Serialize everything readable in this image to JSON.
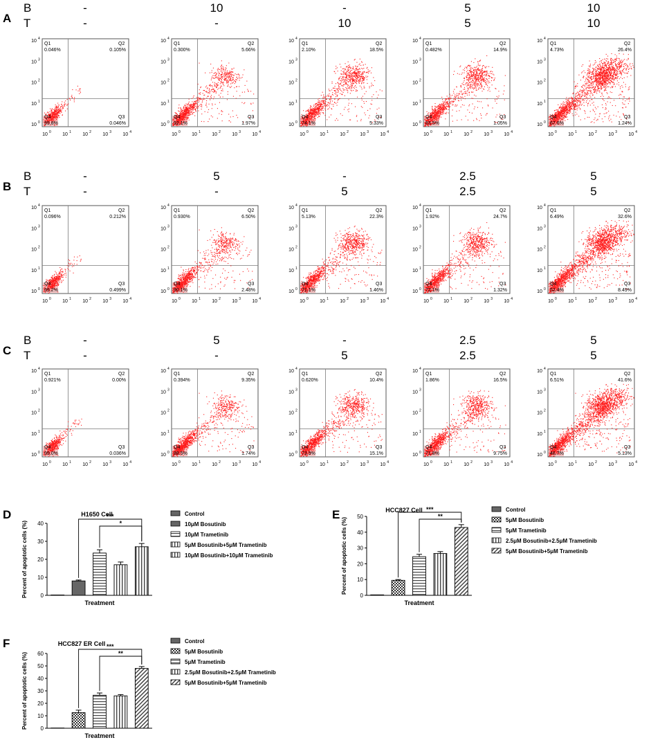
{
  "flow_rows": [
    {
      "letter": "A",
      "B_label": "B",
      "T_label": "T",
      "B": [
        "-",
        "10",
        "-",
        "5",
        "10"
      ],
      "T": [
        "-",
        "-",
        "10",
        "5",
        "10"
      ],
      "plots": [
        {
          "q1": "0.046%",
          "q2": "0.105%",
          "q3": "0.046%",
          "q4": "99.8%",
          "shape": "ctrl"
        },
        {
          "q1": "0.300%",
          "q2": "5.66%",
          "q3": "1.97%",
          "q4": "92.1%",
          "shape": "mild"
        },
        {
          "q1": "2.10%",
          "q2": "18.5%",
          "q3": "5.33%",
          "q4": "74.1%",
          "shape": "mid"
        },
        {
          "q1": "0.482%",
          "q2": "14.9%",
          "q3": "1.05%",
          "q4": "83.5%",
          "shape": "mid"
        },
        {
          "q1": "4.73%",
          "q2": "26.4%",
          "q3": "1.24%",
          "q4": "67.6%",
          "shape": "strong"
        }
      ]
    },
    {
      "letter": "B",
      "B_label": "B",
      "T_label": "T",
      "B": [
        "-",
        "5",
        "-",
        "2.5",
        "5"
      ],
      "T": [
        "-",
        "-",
        "5",
        "2.5",
        "5"
      ],
      "plots": [
        {
          "q1": "0.096%",
          "q2": "0.212%",
          "q3": "0.499%",
          "q4": "99.2%",
          "shape": "ctrl"
        },
        {
          "q1": "0.930%",
          "q2": "6.50%",
          "q3": "2.48%",
          "q4": "90.1%",
          "shape": "mild"
        },
        {
          "q1": "5.13%",
          "q2": "22.3%",
          "q3": "1.46%",
          "q4": "71.1%",
          "shape": "mid"
        },
        {
          "q1": "1.92%",
          "q2": "24.7%",
          "q3": "1.32%",
          "q4": "72.1%",
          "shape": "mid"
        },
        {
          "q1": "6.49%",
          "q2": "32.6%",
          "q3": "8.49%",
          "q4": "52.4%",
          "shape": "strong"
        }
      ]
    },
    {
      "letter": "C",
      "B_label": "B",
      "T_label": "T",
      "B": [
        "-",
        "5",
        "-",
        "2.5",
        "5"
      ],
      "T": [
        "-",
        "-",
        "5",
        "2.5",
        "5"
      ],
      "plots": [
        {
          "q1": "0.921%",
          "q2": "0.00%",
          "q3": "0.036%",
          "q4": "99.0%",
          "shape": "ctrl"
        },
        {
          "q1": "0.394%",
          "q2": "9.35%",
          "q3": "1.74%",
          "q4": "88.5%",
          "shape": "mild"
        },
        {
          "q1": "0.620%",
          "q2": "10.4%",
          "q3": "15.1%",
          "q4": "73.9%",
          "shape": "mid"
        },
        {
          "q1": "1.86%",
          "q2": "16.5%",
          "q3": "9.75%",
          "q4": "71.8%",
          "shape": "mid"
        },
        {
          "q1": "6.51%",
          "q2": "41.6%",
          "q3": "5.13%",
          "q4": "46.7%",
          "shape": "strong"
        }
      ]
    }
  ],
  "flow_axis_ticks": [
    "10",
    "10",
    "10",
    "10",
    "10"
  ],
  "flow_axis_exps": [
    "0",
    "1",
    "2",
    "3",
    "4"
  ],
  "quadrant_names": {
    "q1": "Q1",
    "q2": "Q2",
    "q3": "Q3",
    "q4": "Q4"
  },
  "chart_data": [
    {
      "panel": "D",
      "type": "bar",
      "title": "H1650 Cell",
      "xlabel": "Treatment",
      "ylabel": "Percent of apoptotic cells (%)",
      "ylim": [
        0,
        40
      ],
      "yticks": [
        "0",
        "10",
        "20",
        "30",
        "40"
      ],
      "categories": [
        "Control",
        "10μM Bosutinib",
        "10μM Trametinib",
        "5μM Bosutinib+5μM Trametinib",
        "10μM Bosutinib+10μM Trametinib"
      ],
      "values": [
        0.2,
        8,
        23.5,
        17,
        27
      ],
      "errors": [
        0,
        0.5,
        1.8,
        1.5,
        1.8
      ],
      "patterns": [
        "solid",
        "solid",
        "stripe-h",
        "stripe-v",
        "stripe-v"
      ],
      "significance": [
        {
          "label": "***",
          "from": 1,
          "to": 4
        },
        {
          "label": "*",
          "from": 2,
          "to": 4
        }
      ]
    },
    {
      "panel": "E",
      "type": "bar",
      "title": "HCC827 Cell",
      "xlabel": "Treatment",
      "ylabel": "Percent of apoptotic cells (%)",
      "ylim": [
        0,
        50
      ],
      "yticks": [
        "0",
        "10",
        "20",
        "30",
        "40",
        "50"
      ],
      "categories": [
        "Control",
        "5μM Bosutinib",
        "5μM Trametinib",
        "2.5μM Bosutinib+2.5μM Trametinib",
        "5μM Bosutinib+5μM Trametinib"
      ],
      "values": [
        0.3,
        9.5,
        24.5,
        26.5,
        43
      ],
      "errors": [
        0,
        0.5,
        1.5,
        1.2,
        1.8
      ],
      "patterns": [
        "solid",
        "check",
        "stripe-h",
        "stripe-v",
        "diag"
      ],
      "significance": [
        {
          "label": "***",
          "from": 1,
          "to": 4
        },
        {
          "label": "**",
          "from": 2,
          "to": 4
        }
      ]
    },
    {
      "panel": "F",
      "type": "bar",
      "title": "HCC827 ER Cell",
      "xlabel": "Treatment",
      "ylabel": "Percent of apoptotic cells (%)",
      "ylim": [
        0,
        60
      ],
      "yticks": [
        "0",
        "10",
        "20",
        "30",
        "40",
        "50",
        "60"
      ],
      "categories": [
        "Control",
        "5μM Bosutinib",
        "5μM Trametinib",
        "2.5μM Bosutinib+2.5μM Trametinib",
        "5μM Bosutinib+5μM Trametinib"
      ],
      "values": [
        0.2,
        12.5,
        26.5,
        26,
        48
      ],
      "errors": [
        0,
        2,
        1.8,
        1,
        1.5
      ],
      "patterns": [
        "solid",
        "check",
        "stripe-h",
        "stripe-v",
        "diag"
      ],
      "significance": [
        {
          "label": "***",
          "from": 1,
          "to": 4
        },
        {
          "label": "**",
          "from": 2,
          "to": 4
        }
      ]
    }
  ],
  "colors": {
    "dots": "#ff1a1a",
    "gate": "#7a7a7a",
    "bar_dark": "#666666",
    "q4_patch": "#f6c4c4"
  }
}
